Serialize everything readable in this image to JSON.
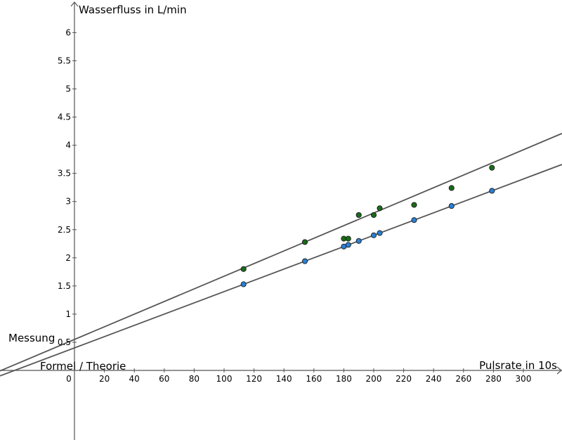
{
  "chart_data": {
    "type": "scatter",
    "title": "",
    "xlabel": "Pulsrate in 10s",
    "ylabel": "Wasserfluss in L/min",
    "xlim": [
      -46,
      328
    ],
    "ylim": [
      -0.13,
      6.5
    ],
    "x_ticks": [
      0,
      20,
      40,
      60,
      80,
      100,
      120,
      140,
      160,
      180,
      200,
      220,
      240,
      260,
      280,
      300
    ],
    "y_ticks": [
      0.5,
      1,
      1.5,
      2,
      2.5,
      3,
      3.5,
      4,
      4.5,
      5,
      5.5,
      6
    ],
    "grid": false,
    "series": [
      {
        "name": "Messung",
        "color": "#1a6b1a",
        "points": [
          {
            "x": 113,
            "y": 1.8
          },
          {
            "x": 154,
            "y": 2.28
          },
          {
            "x": 180,
            "y": 2.34
          },
          {
            "x": 183,
            "y": 2.34
          },
          {
            "x": 190,
            "y": 2.76
          },
          {
            "x": 200,
            "y": 2.76
          },
          {
            "x": 204,
            "y": 2.88
          },
          {
            "x": 227,
            "y": 2.94
          },
          {
            "x": 252,
            "y": 3.24
          },
          {
            "x": 279,
            "y": 3.6
          }
        ],
        "trendline": {
          "slope": 0.01123,
          "intercept": 0.55
        }
      },
      {
        "name": "Formel / Theorie",
        "color": "#2a7fd4",
        "points": [
          {
            "x": 113,
            "y": 1.53
          },
          {
            "x": 154,
            "y": 1.94
          },
          {
            "x": 180,
            "y": 2.2
          },
          {
            "x": 183,
            "y": 2.23
          },
          {
            "x": 190,
            "y": 2.3
          },
          {
            "x": 200,
            "y": 2.4
          },
          {
            "x": 204,
            "y": 2.44
          },
          {
            "x": 227,
            "y": 2.67
          },
          {
            "x": 252,
            "y": 2.92
          },
          {
            "x": 279,
            "y": 3.19
          }
        ],
        "trendline": {
          "slope": 0.01,
          "intercept": 0.4
        }
      }
    ]
  }
}
